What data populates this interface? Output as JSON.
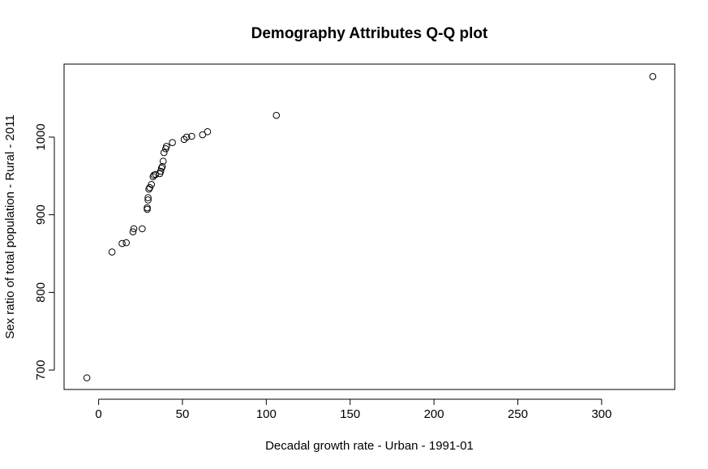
{
  "chart_data": {
    "type": "scatter",
    "title": "Demography Attributes Q-Q plot",
    "xlabel": "Decadal growth rate - Urban - 1991-01",
    "ylabel": "Sex ratio of total population - Rural - 2011",
    "xlim": [
      -20.6,
      343.6
    ],
    "ylim": [
      675,
      1094
    ],
    "x_ticks": [
      0,
      50,
      100,
      150,
      200,
      250,
      300
    ],
    "y_ticks": [
      700,
      800,
      900,
      1000
    ],
    "grid": false,
    "legend": "none",
    "marker": "open-circle",
    "points": [
      {
        "x": -7,
        "y": 690
      },
      {
        "x": 8,
        "y": 852
      },
      {
        "x": 14,
        "y": 863
      },
      {
        "x": 16.5,
        "y": 864
      },
      {
        "x": 20.5,
        "y": 878
      },
      {
        "x": 21,
        "y": 882
      },
      {
        "x": 26,
        "y": 882
      },
      {
        "x": 29,
        "y": 907
      },
      {
        "x": 29,
        "y": 909
      },
      {
        "x": 29.5,
        "y": 919
      },
      {
        "x": 29.5,
        "y": 922
      },
      {
        "x": 30,
        "y": 933
      },
      {
        "x": 30.5,
        "y": 935
      },
      {
        "x": 31.5,
        "y": 939
      },
      {
        "x": 32.5,
        "y": 949
      },
      {
        "x": 33,
        "y": 951
      },
      {
        "x": 34,
        "y": 952
      },
      {
        "x": 36.5,
        "y": 953
      },
      {
        "x": 37,
        "y": 956
      },
      {
        "x": 37.5,
        "y": 960
      },
      {
        "x": 38,
        "y": 962
      },
      {
        "x": 38.5,
        "y": 969
      },
      {
        "x": 39,
        "y": 980
      },
      {
        "x": 40,
        "y": 985
      },
      {
        "x": 40.5,
        "y": 988
      },
      {
        "x": 44,
        "y": 993
      },
      {
        "x": 51,
        "y": 997
      },
      {
        "x": 52.5,
        "y": 1000
      },
      {
        "x": 55.5,
        "y": 1001
      },
      {
        "x": 62,
        "y": 1003
      },
      {
        "x": 65,
        "y": 1007
      },
      {
        "x": 106,
        "y": 1028
      },
      {
        "x": 330.5,
        "y": 1078
      }
    ]
  }
}
